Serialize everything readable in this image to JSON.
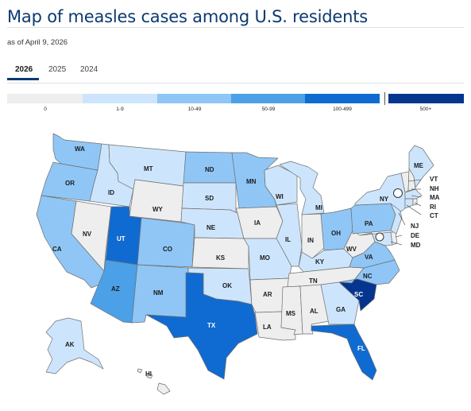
{
  "header": {
    "title": "Map of measles cases among U.S. residents",
    "as_of": "as of April 9, 2026"
  },
  "tabs": [
    {
      "label": "2026",
      "active": true
    },
    {
      "label": "2025",
      "active": false
    },
    {
      "label": "2024",
      "active": false
    }
  ],
  "legend": {
    "bins": [
      {
        "label": "0",
        "color": "#eeeeee"
      },
      {
        "label": "1-9",
        "color": "#cde5fc"
      },
      {
        "label": "10-49",
        "color": "#8fc6f6"
      },
      {
        "label": "50-99",
        "color": "#4ba0e8"
      },
      {
        "label": "100-499",
        "color": "#0f6bd1"
      },
      {
        "label": "500+",
        "color": "#05358e"
      }
    ]
  },
  "map": {
    "states": [
      {
        "abbr": "WA",
        "bin": "10-49"
      },
      {
        "abbr": "OR",
        "bin": "10-49"
      },
      {
        "abbr": "CA",
        "bin": "10-49"
      },
      {
        "abbr": "ID",
        "bin": "1-9"
      },
      {
        "abbr": "NV",
        "bin": "0"
      },
      {
        "abbr": "MT",
        "bin": "1-9"
      },
      {
        "abbr": "WY",
        "bin": "0"
      },
      {
        "abbr": "UT",
        "bin": "100-499"
      },
      {
        "abbr": "AZ",
        "bin": "50-99"
      },
      {
        "abbr": "CO",
        "bin": "10-49"
      },
      {
        "abbr": "NM",
        "bin": "10-49"
      },
      {
        "abbr": "ND",
        "bin": "10-49"
      },
      {
        "abbr": "SD",
        "bin": "1-9"
      },
      {
        "abbr": "NE",
        "bin": "1-9"
      },
      {
        "abbr": "KS",
        "bin": "0"
      },
      {
        "abbr": "OK",
        "bin": "1-9"
      },
      {
        "abbr": "TX",
        "bin": "100-499"
      },
      {
        "abbr": "MN",
        "bin": "10-49"
      },
      {
        "abbr": "IA",
        "bin": "0"
      },
      {
        "abbr": "MO",
        "bin": "1-9"
      },
      {
        "abbr": "AR",
        "bin": "0"
      },
      {
        "abbr": "LA",
        "bin": "0"
      },
      {
        "abbr": "WI",
        "bin": "1-9"
      },
      {
        "abbr": "IL",
        "bin": "1-9"
      },
      {
        "abbr": "MI",
        "bin": "1-9"
      },
      {
        "abbr": "IN",
        "bin": "0"
      },
      {
        "abbr": "OH",
        "bin": "10-49"
      },
      {
        "abbr": "KY",
        "bin": "1-9"
      },
      {
        "abbr": "TN",
        "bin": "0"
      },
      {
        "abbr": "MS",
        "bin": "0"
      },
      {
        "abbr": "AL",
        "bin": "0"
      },
      {
        "abbr": "GA",
        "bin": "1-9"
      },
      {
        "abbr": "FL",
        "bin": "100-499"
      },
      {
        "abbr": "SC",
        "bin": "500+"
      },
      {
        "abbr": "NC",
        "bin": "10-49"
      },
      {
        "abbr": "VA",
        "bin": "10-49"
      },
      {
        "abbr": "WV",
        "bin": "0"
      },
      {
        "abbr": "PA",
        "bin": "10-49"
      },
      {
        "abbr": "NY",
        "bin": "1-9"
      },
      {
        "abbr": "ME",
        "bin": "1-9"
      },
      {
        "abbr": "VT",
        "bin": "0"
      },
      {
        "abbr": "NH",
        "bin": "0"
      },
      {
        "abbr": "MA",
        "bin": "1-9"
      },
      {
        "abbr": "RI",
        "bin": "0"
      },
      {
        "abbr": "CT",
        "bin": "1-9"
      },
      {
        "abbr": "NJ",
        "bin": "1-9"
      },
      {
        "abbr": "DE",
        "bin": "0"
      },
      {
        "abbr": "MD",
        "bin": "1-9"
      },
      {
        "abbr": "AK",
        "bin": "1-9"
      },
      {
        "abbr": "HI",
        "bin": "0"
      }
    ]
  }
}
